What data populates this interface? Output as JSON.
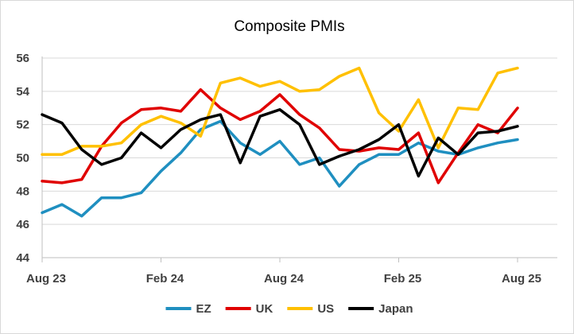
{
  "chart_data": {
    "type": "line",
    "title": "Composite PMIs",
    "xlabel": "",
    "ylabel": "",
    "ylim": [
      44,
      56
    ],
    "y_ticks": [
      44,
      46,
      48,
      50,
      52,
      54,
      56
    ],
    "x_tick_labels": [
      {
        "index": 0,
        "label": "Aug 23"
      },
      {
        "index": 6,
        "label": "Feb 24"
      },
      {
        "index": 12,
        "label": "Aug 24"
      },
      {
        "index": 18,
        "label": "Feb 25"
      },
      {
        "index": 24,
        "label": "Aug 25"
      }
    ],
    "categories": [
      "Aug 23",
      "Sep 23",
      "Oct 23",
      "Nov 23",
      "Dec 23",
      "Jan 24",
      "Feb 24",
      "Mar 24",
      "Apr 24",
      "May 24",
      "Jun 24",
      "Jul 24",
      "Aug 24",
      "Sep 24",
      "Oct 24",
      "Nov 24",
      "Dec 24",
      "Jan 25",
      "Feb 25",
      "Mar 25",
      "Apr 25",
      "May 25",
      "Jun 25",
      "Jul 25",
      "Aug 25"
    ],
    "grid": true,
    "legend_position": "bottom",
    "series": [
      {
        "name": "EZ",
        "color": "#1f8fc0",
        "values": [
          46.7,
          47.2,
          46.5,
          47.6,
          47.6,
          47.9,
          49.2,
          50.3,
          51.7,
          52.2,
          50.9,
          50.2,
          51.0,
          49.6,
          50.0,
          48.3,
          49.6,
          50.2,
          50.2,
          50.9,
          50.4,
          50.2,
          50.6,
          50.9,
          51.1
        ]
      },
      {
        "name": "UK",
        "color": "#e00000",
        "values": [
          48.6,
          48.5,
          48.7,
          50.7,
          52.1,
          52.9,
          53.0,
          52.8,
          54.1,
          53.0,
          52.3,
          52.8,
          53.8,
          52.6,
          51.8,
          50.5,
          50.4,
          50.6,
          50.5,
          51.5,
          48.5,
          50.3,
          52.0,
          51.5,
          53.0
        ]
      },
      {
        "name": "US",
        "color": "#ffc000",
        "values": [
          50.2,
          50.2,
          50.7,
          50.7,
          50.9,
          52.0,
          52.5,
          52.1,
          51.3,
          54.5,
          54.8,
          54.3,
          54.6,
          54.0,
          54.1,
          54.9,
          55.4,
          52.7,
          51.6,
          53.5,
          50.6,
          53.0,
          52.9,
          55.1,
          55.4
        ]
      },
      {
        "name": "Japan",
        "color": "#000000",
        "values": [
          52.6,
          52.1,
          50.5,
          49.6,
          50.0,
          51.5,
          50.6,
          51.7,
          52.3,
          52.6,
          49.7,
          52.5,
          52.9,
          52.0,
          49.6,
          50.1,
          50.5,
          51.1,
          52.0,
          48.9,
          51.2,
          50.2,
          51.5,
          51.6,
          51.9
        ]
      }
    ]
  }
}
